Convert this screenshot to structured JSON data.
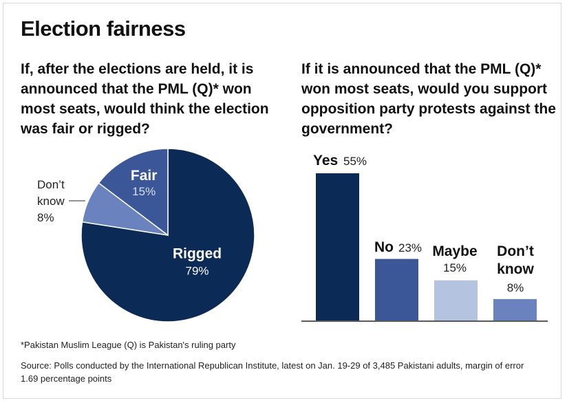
{
  "title": "Election fairness",
  "left": {
    "question": "If, after the elections are held, it is announced that the PML (Q)* won most seats, would think the election was fair or rigged?"
  },
  "right": {
    "question": "If it is announced that the PML (Q)* won most seats, would you support opposition party protests against the government?"
  },
  "footnote": "*Pakistan Muslim League (Q) is Pakistan's ruling party",
  "source": "Source: Polls conducted by the International Republican Institute, latest on Jan. 19-29 of 3,485 Pakistani adults, margin of error 1.69 percentage points",
  "colors": {
    "dark": "#0b2a55",
    "medium": "#3b5797",
    "light": "#6a82bd",
    "pale": "#b3c3e0"
  },
  "chart_data": [
    {
      "type": "pie",
      "title": "",
      "slices": [
        {
          "label": "Rigged",
          "value": 79,
          "value_label": "79%",
          "color": "#0b2a55"
        },
        {
          "label": "Don't know",
          "value": 8,
          "value_label": "8%",
          "color": "#6a82bd"
        },
        {
          "label": "Fair",
          "value": 15,
          "value_label": "15%",
          "color": "#3b5797"
        }
      ]
    },
    {
      "type": "bar",
      "title": "",
      "categories": [
        "Yes",
        "No",
        "Maybe",
        "Don't know"
      ],
      "values": [
        55,
        23,
        15,
        8
      ],
      "value_labels": [
        "55%",
        "23%",
        "15%",
        "8%"
      ],
      "colors": [
        "#0b2a55",
        "#3b5797",
        "#b3c3e0",
        "#6a82bd"
      ],
      "xlabel": "",
      "ylabel": "",
      "ylim": [
        0,
        55
      ],
      "grid": false
    }
  ]
}
